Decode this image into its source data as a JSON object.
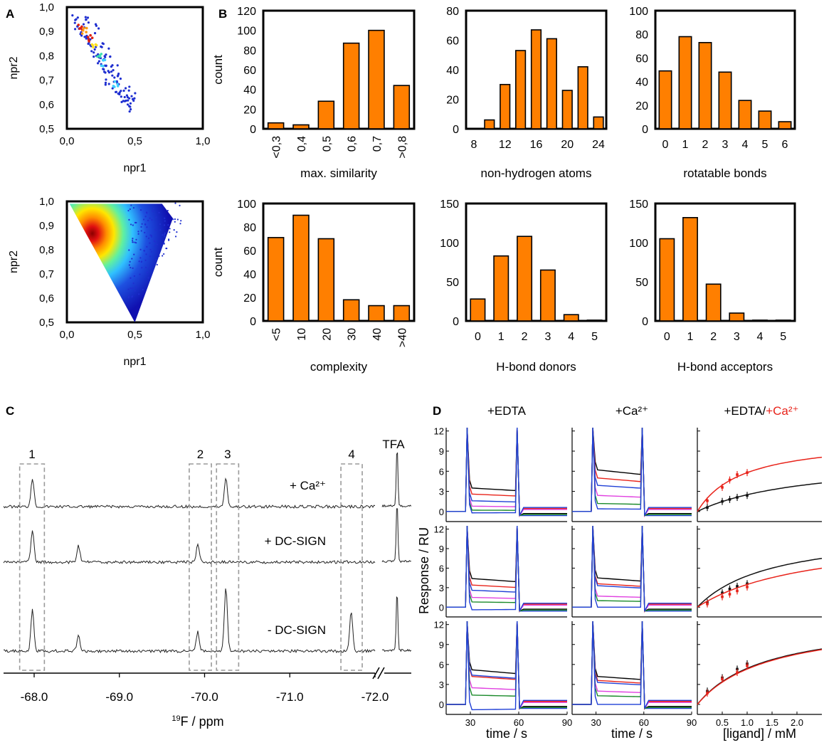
{
  "panel_labels": {
    "A": "A",
    "B": "B",
    "C": "C",
    "D": "D"
  },
  "colors": {
    "bar": "#ff7f00",
    "spectrum": "#222222",
    "dash_box": "#9a9a9a",
    "red": "#e8231a",
    "black": "#111111"
  },
  "chart_data": [
    {
      "id": "A_top",
      "type": "scatter",
      "title": "",
      "xlabel": "npr1",
      "ylabel": "npr2",
      "xlim": [
        0,
        1
      ],
      "ylim": [
        0.5,
        1
      ],
      "xticks": [
        "0,0",
        "0,5",
        "1,0"
      ],
      "yticks": [
        "0,5",
        "0,6",
        "0,7",
        "0,8",
        "0,9",
        "1,0"
      ],
      "description_points": [
        [
          0.08,
          0.92
        ],
        [
          0.1,
          0.9
        ],
        [
          0.12,
          0.93
        ],
        [
          0.15,
          0.88
        ],
        [
          0.16,
          0.86
        ],
        [
          0.18,
          0.85
        ],
        [
          0.2,
          0.83
        ],
        [
          0.22,
          0.8
        ],
        [
          0.24,
          0.78
        ],
        [
          0.26,
          0.78
        ],
        [
          0.28,
          0.75
        ],
        [
          0.3,
          0.74
        ],
        [
          0.33,
          0.72
        ],
        [
          0.36,
          0.68
        ],
        [
          0.38,
          0.67
        ],
        [
          0.4,
          0.65
        ],
        [
          0.42,
          0.63
        ],
        [
          0.45,
          0.62
        ],
        [
          0.48,
          0.61
        ],
        [
          0.5,
          0.63
        ],
        [
          0.06,
          0.95
        ],
        [
          0.14,
          0.94
        ],
        [
          0.21,
          0.91
        ],
        [
          0.25,
          0.84
        ],
        [
          0.31,
          0.81
        ],
        [
          0.35,
          0.76
        ],
        [
          0.39,
          0.71
        ],
        [
          0.44,
          0.67
        ],
        [
          0.47,
          0.59
        ],
        [
          0.29,
          0.7
        ]
      ]
    },
    {
      "id": "A_bottom",
      "type": "scatter",
      "title": "",
      "xlabel": "npr1",
      "ylabel": "npr2",
      "xlim": [
        0,
        1
      ],
      "ylim": [
        0.5,
        1
      ],
      "xticks": [
        "0,0",
        "0,5",
        "1,0"
      ],
      "yticks": [
        "0,5",
        "0,6",
        "0,7",
        "0,8",
        "0,9",
        "1,0"
      ]
    },
    {
      "id": "B1",
      "type": "bar",
      "xlabel": "max. similarity",
      "ylabel": "count",
      "categories": [
        "<0,3",
        "0,4",
        "0,5",
        "0,6",
        "0,7",
        ">0,8"
      ],
      "values": [
        6,
        4,
        28,
        87,
        100,
        44
      ],
      "ylim": [
        0,
        120
      ],
      "yticks": [
        "0",
        "20",
        "40",
        "60",
        "80",
        "100",
        "120"
      ],
      "rotated_labels": true
    },
    {
      "id": "B2",
      "type": "bar",
      "xlabel": "non-hydrogen atoms",
      "ylabel": "",
      "categories": [
        "8",
        "10",
        "12",
        "14",
        "16",
        "18",
        "20",
        "22",
        "24"
      ],
      "tick_labels": [
        "8",
        "",
        "12",
        "",
        "16",
        "",
        "20",
        "",
        "24"
      ],
      "values": [
        0,
        6,
        30,
        53,
        67,
        61,
        26,
        42,
        8
      ],
      "ylim": [
        0,
        80
      ],
      "yticks": [
        "0",
        "20",
        "40",
        "60",
        "80"
      ]
    },
    {
      "id": "B3",
      "type": "bar",
      "xlabel": "rotatable bonds",
      "ylabel": "",
      "categories": [
        "0",
        "1",
        "2",
        "3",
        "4",
        "5",
        "6"
      ],
      "values": [
        49,
        78,
        73,
        48,
        24,
        15,
        6
      ],
      "ylim": [
        0,
        100
      ],
      "yticks": [
        "0",
        "20",
        "40",
        "60",
        "80",
        "100"
      ]
    },
    {
      "id": "B4",
      "type": "bar",
      "xlabel": "complexity",
      "ylabel": "count",
      "categories": [
        "<5",
        "10",
        "20",
        "30",
        "40",
        ">40"
      ],
      "values": [
        71,
        90,
        70,
        18,
        13,
        13
      ],
      "ylim": [
        0,
        100
      ],
      "yticks": [
        "0",
        "20",
        "40",
        "60",
        "80",
        "100"
      ],
      "rotated_labels": true
    },
    {
      "id": "B5",
      "type": "bar",
      "xlabel": "H-bond donors",
      "ylabel": "",
      "categories": [
        "0",
        "1",
        "2",
        "3",
        "4",
        "5"
      ],
      "values": [
        28,
        83,
        108,
        65,
        8,
        1
      ],
      "ylim": [
        0,
        150
      ],
      "yticks": [
        "0",
        "50",
        "100",
        "150"
      ]
    },
    {
      "id": "B6",
      "type": "bar",
      "xlabel": "H-bond acceptors",
      "ylabel": "",
      "categories": [
        "0",
        "1",
        "2",
        "3",
        "4",
        "5"
      ],
      "values": [
        105,
        132,
        47,
        10,
        1,
        1
      ],
      "ylim": [
        0,
        150
      ],
      "yticks": [
        "0",
        "50",
        "100",
        "150"
      ]
    },
    {
      "id": "C",
      "type": "line",
      "title": "",
      "xlabel_pre": "19",
      "xlabel": "F / ppm",
      "xlim": [
        -67.6,
        -72.65
      ],
      "xticks": [
        "-68.0",
        "-69.0",
        "-70.0",
        "-71.0",
        "-72.0"
      ],
      "xtick_values": [
        -68.0,
        -69.0,
        -70.0,
        -71.0,
        -72.0
      ],
      "traces": [
        {
          "name": "+ Ca²⁺",
          "peaks": [
            [
              -67.98,
              0.45
            ],
            [
              -70.25,
              0.45
            ]
          ]
        },
        {
          "name": "+ DC-SIGN",
          "peaks": [
            [
              -67.98,
              0.5
            ],
            [
              -68.52,
              0.25
            ],
            [
              -69.92,
              0.28
            ],
            [
              -71.72,
              0.0
            ]
          ]
        },
        {
          "name": "- DC-SIGN",
          "peaks": [
            [
              -67.98,
              0.65
            ],
            [
              -68.52,
              0.25
            ],
            [
              -69.92,
              0.3
            ],
            [
              -70.25,
              1.0
            ],
            [
              -71.72,
              0.6
            ]
          ]
        }
      ],
      "boxes": [
        {
          "label": "1",
          "from": -67.83,
          "to": -68.12
        },
        {
          "label": "2",
          "from": -69.82,
          "to": -70.08
        },
        {
          "label": "3",
          "from": -70.14,
          "to": -70.4
        },
        {
          "label": "4",
          "from": -71.6,
          "to": -71.85
        }
      ],
      "tfa_label": "TFA"
    },
    {
      "id": "D",
      "type": "line",
      "ylabel": "Response / RU",
      "columns": [
        {
          "title": "+EDTA",
          "xlabel": "time / s",
          "xticks": [
            "30",
            "60",
            "90"
          ],
          "xlim": [
            15,
            90
          ]
        },
        {
          "title": "+Ca²⁺",
          "xlabel": "time / s",
          "xticks": [
            "30",
            "60",
            "90"
          ],
          "xlim": [
            15,
            90
          ]
        },
        {
          "title_a": "+EDTA/",
          "title_b": "+Ca²⁺",
          "xlabel": "[ligand] / mM",
          "xticks": [
            "0.5",
            "1.0",
            "1.5",
            "2.0"
          ],
          "xlim": [
            0,
            2.5
          ]
        }
      ],
      "yticks": [
        "0",
        "3",
        "6",
        "9",
        "12"
      ],
      "ylim": [
        -1.5,
        12.5
      ],
      "series_colors": [
        "#000000",
        "#e8231a",
        "#1f3fd6",
        "#e040e0",
        "#1a8a2a",
        "#1f3fd6"
      ],
      "sensorgrams": [
        [
          [
            3.5,
            2.6,
            1.6,
            0.8,
            0.2,
            -0.2
          ],
          [
            6.2,
            5.0,
            3.9,
            2.4,
            1.2,
            0.4
          ]
        ],
        [
          [
            4.4,
            3.4,
            2.6,
            1.5,
            0.8,
            -0.4
          ],
          [
            4.5,
            3.6,
            3.3,
            1.7,
            1.0,
            0.0
          ]
        ],
        [
          [
            5.2,
            4.2,
            4.4,
            2.5,
            1.4,
            -0.8
          ],
          [
            4.2,
            3.6,
            3.3,
            2.0,
            1.3,
            0.0
          ]
        ]
      ],
      "binding_curves": [
        {
          "black": [
            [
              0.2,
              0.6
            ],
            [
              0.5,
              1.5
            ],
            [
              0.65,
              1.8
            ],
            [
              0.8,
              2.1
            ],
            [
              1.0,
              2.4
            ]
          ],
          "red": [
            [
              0.2,
              1.6
            ],
            [
              0.5,
              3.6
            ],
            [
              0.65,
              4.7
            ],
            [
              0.8,
              5.5
            ],
            [
              1.0,
              5.8
            ]
          ],
          "kmax_black": 8.0,
          "kd_black": 2.2,
          "kmax_red": 11.0,
          "kd_red": 0.9
        },
        {
          "black": [
            [
              0.2,
              0.7
            ],
            [
              0.5,
              2.2
            ],
            [
              0.65,
              2.8
            ],
            [
              0.8,
              3.2
            ],
            [
              1.0,
              3.6
            ]
          ],
          "red": [
            [
              0.2,
              0.5
            ],
            [
              0.5,
              1.6
            ],
            [
              0.65,
              2.0
            ],
            [
              0.8,
              2.5
            ],
            [
              1.0,
              3.1
            ]
          ],
          "kmax_black": 12.0,
          "kd_black": 1.5,
          "kmax_red": 11.5,
          "kd_red": 2.3
        },
        {
          "black": [
            [
              0.2,
              2.0
            ],
            [
              0.5,
              4.0
            ],
            [
              0.8,
              5.3
            ],
            [
              1.0,
              6.1
            ]
          ],
          "red": [
            [
              0.2,
              1.7
            ],
            [
              0.5,
              3.8
            ],
            [
              0.8,
              4.8
            ],
            [
              1.0,
              5.8
            ]
          ],
          "kmax_black": 13.0,
          "kd_black": 1.4,
          "kmax_red": 13.0,
          "kd_red": 1.45
        }
      ]
    }
  ]
}
